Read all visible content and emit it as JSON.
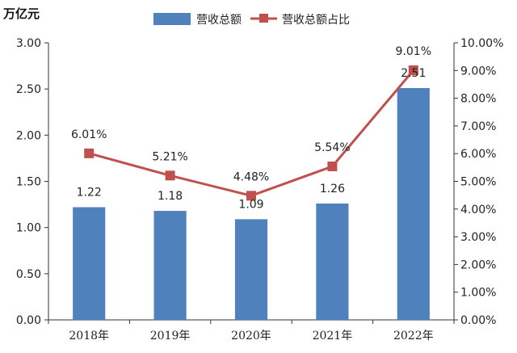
{
  "chart_data": {
    "type": "bar",
    "categories": [
      "2018年",
      "2019年",
      "2020年",
      "2021年",
      "2022年"
    ],
    "series": [
      {
        "name": "营收总额",
        "type": "bar",
        "axis": "left",
        "values": [
          1.22,
          1.18,
          1.09,
          1.26,
          2.51
        ],
        "labels": [
          "1.22",
          "1.18",
          "1.09",
          "1.26",
          "2.51"
        ],
        "color": "#4F81BD"
      },
      {
        "name": "营收总额占比",
        "type": "line",
        "axis": "right",
        "values": [
          6.01,
          5.21,
          4.48,
          5.54,
          9.01
        ],
        "labels": [
          "6.01%",
          "5.21%",
          "4.48%",
          "5.54%",
          "9.01%"
        ],
        "color": "#C0504D"
      }
    ],
    "ylabel": "万亿元",
    "ylim": [
      0,
      3
    ],
    "y_ticks": [
      "0.00",
      "0.50",
      "1.00",
      "1.50",
      "2.00",
      "2.50",
      "3.00"
    ],
    "y2lim": [
      0,
      10
    ],
    "y2_ticks": [
      "0.00%",
      "1.00%",
      "2.00%",
      "3.00%",
      "4.00%",
      "5.00%",
      "6.00%",
      "7.00%",
      "8.00%",
      "9.00%",
      "10.00%"
    ],
    "grid": false,
    "legend_position": "top"
  }
}
